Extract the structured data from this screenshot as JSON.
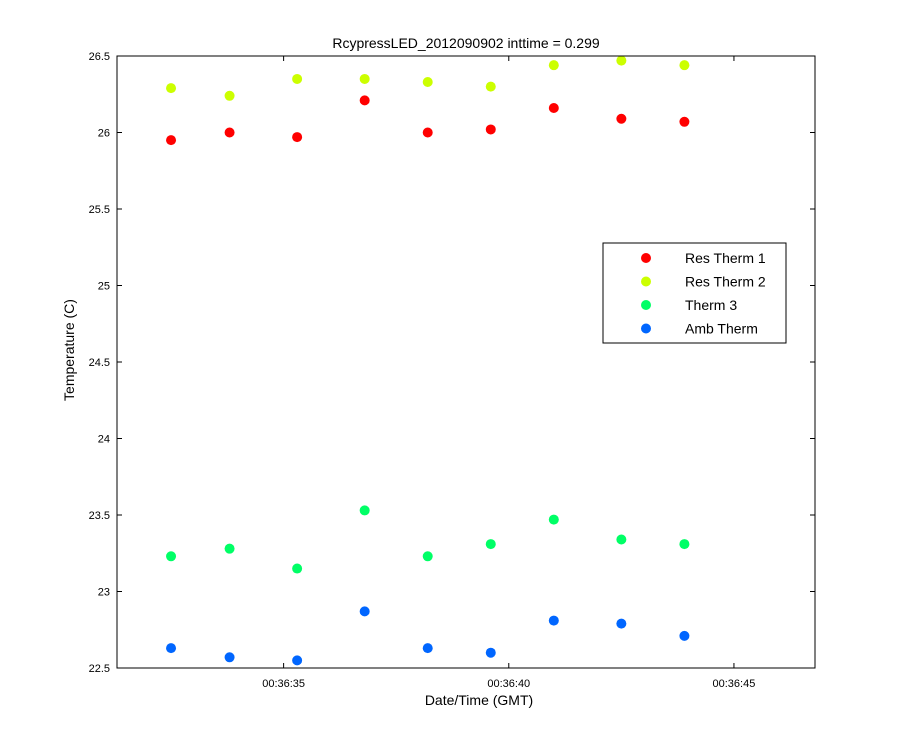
{
  "chart_data": {
    "type": "scatter",
    "title": "RcypressLED_2012090902 inttime = 0.299",
    "xlabel": "Date/Time (GMT)",
    "ylabel": "Temperature (C)",
    "xlim": [
      "00:36:31.3",
      "00:36:46.8"
    ],
    "ylim": [
      22.5,
      26.5
    ],
    "x_ticks": [
      "00:36:35",
      "00:36:40",
      "00:36:45"
    ],
    "y_ticks": [
      "22.5",
      "23",
      "23.5",
      "24",
      "24.5",
      "25",
      "25.5",
      "26",
      "26.5"
    ],
    "grid": false,
    "legend_position": "right-center",
    "x": [
      "00:36:32.5",
      "00:36:33.8",
      "00:36:35.3",
      "00:36:36.8",
      "00:36:38.2",
      "00:36:39.6",
      "00:36:41.0",
      "00:36:42.5",
      "00:36:43.9"
    ],
    "series": [
      {
        "name": "Res Therm 1",
        "color": "#ff0000",
        "values": [
          25.95,
          26.0,
          25.97,
          26.21,
          26.0,
          26.02,
          26.16,
          26.09,
          26.07
        ]
      },
      {
        "name": "Res Therm 2",
        "color": "#ccff00",
        "values": [
          26.29,
          26.24,
          26.35,
          26.35,
          26.33,
          26.3,
          26.44,
          26.47,
          26.44
        ]
      },
      {
        "name": "Therm 3",
        "color": "#00ff66",
        "values": [
          23.23,
          23.28,
          23.15,
          23.53,
          23.23,
          23.31,
          23.47,
          23.34,
          23.31
        ]
      },
      {
        "name": "Amb Therm",
        "color": "#0066ff",
        "values": [
          22.63,
          22.57,
          22.55,
          22.87,
          22.63,
          22.6,
          22.81,
          22.79,
          22.71
        ]
      }
    ]
  }
}
